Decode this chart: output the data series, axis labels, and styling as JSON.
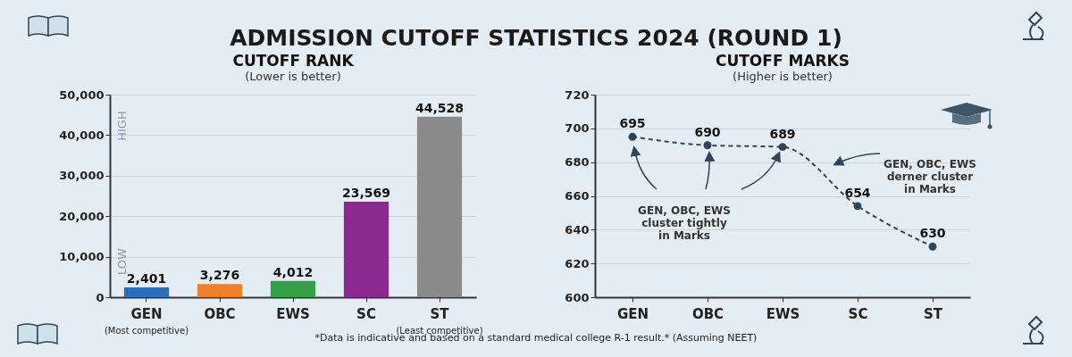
{
  "chart_data": [
    {
      "type": "bar",
      "title": "CUTOFF RANK",
      "subtitle": "(Lower is better)",
      "categories": [
        "GEN",
        "OBC",
        "EWS",
        "SC",
        "ST"
      ],
      "values": [
        2401,
        3276,
        4012,
        23569,
        44528
      ],
      "colors": [
        "#2b6fb8",
        "#f0802a",
        "#34a048",
        "#8a2a90",
        "#8a8a8a"
      ],
      "ylim": [
        0,
        50000
      ],
      "yticks": [
        0,
        {
          "value": 10000,
          "label": "10,000"
        },
        {
          "value": 20000,
          "label": "20,000"
        },
        {
          "value": 30000,
          "label": "30,000"
        },
        {
          "value": 40000,
          "label": "40,000"
        },
        {
          "value": 50000,
          "label": "50,000"
        }
      ],
      "value_labels": [
        "2,401",
        "3,276",
        "4,012",
        "23,569",
        "44,528"
      ],
      "grid": "y",
      "annotations": [
        "HIGH",
        "LOW",
        "(Most competitive)",
        "(Least competitive)"
      ]
    },
    {
      "type": "line",
      "title": "CUTOFF MARKS",
      "subtitle": "(Higher is better)",
      "categories": [
        "GEN",
        "OBC",
        "EWS",
        "SC",
        "ST"
      ],
      "series": [
        {
          "color": "#2f4658",
          "values": [
            695,
            690,
            689,
            654,
            630
          ]
        }
      ],
      "ylim": [
        600,
        720
      ],
      "yticks": [
        600,
        620,
        640,
        660,
        680,
        700,
        720
      ],
      "data_labels": true,
      "grid": "y",
      "marker": "circle",
      "line_style": "dashed",
      "annotations": [
        "GEN, OBC, EWS\ncluster tightly\nin Marks",
        "GEN, OBC, EWS\nderner cluster\nin Marks"
      ]
    },
    {
      "type": "other",
      "title": "ADMISSION CUTOFF STATISTICS 2024 (ROUND 1)",
      "annotations": [
        "*Data is indicative and based on a standard medical college R-1 result.* (Assuming NEET)"
      ]
    }
  ]
}
